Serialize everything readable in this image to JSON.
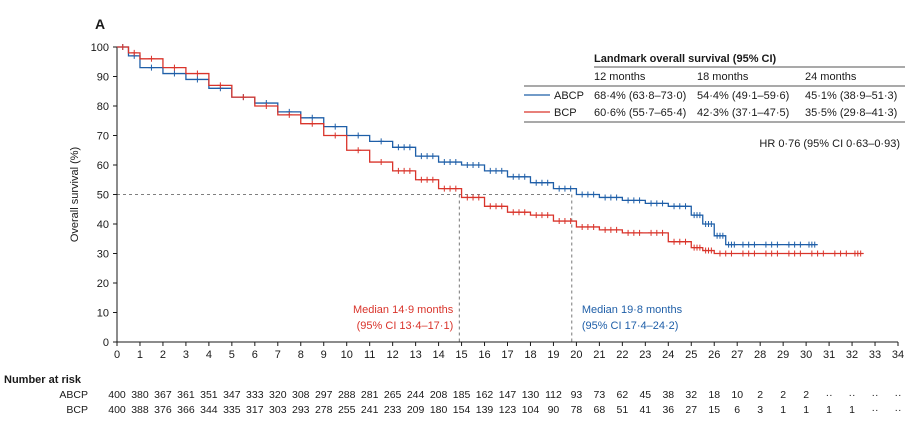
{
  "chart_data": {
    "type": "line",
    "panel_label": "A",
    "ylabel": "Overall survival (%)",
    "xlim": [
      0,
      34
    ],
    "ylim": [
      0,
      100
    ],
    "x_ticks": [
      "0",
      "1",
      "2",
      "3",
      "4",
      "5",
      "6",
      "7",
      "8",
      "9",
      "10",
      "11",
      "12",
      "13",
      "14",
      "15",
      "16",
      "17",
      "18",
      "19",
      "20",
      "21",
      "22",
      "23",
      "24",
      "25",
      "26",
      "27",
      "28",
      "29",
      "30",
      "31",
      "32",
      "33",
      "34"
    ],
    "y_ticks": [
      "0",
      "10",
      "20",
      "30",
      "40",
      "50",
      "60",
      "70",
      "80",
      "90",
      "100"
    ],
    "colors": {
      "ABCP": "#1f5fa8",
      "BCP": "#d9342b"
    },
    "series": [
      {
        "name": "ABCP",
        "color": "#1f5fa8",
        "x": [
          0,
          0.5,
          1,
          2,
          3,
          4,
          5,
          6,
          7,
          8,
          9,
          10,
          11,
          12,
          13,
          14,
          15,
          16,
          17,
          18,
          19,
          20,
          21,
          22,
          23,
          24,
          25,
          25.5,
          26,
          26.5,
          27,
          28,
          29,
          30,
          30.5
        ],
        "y": [
          100,
          97,
          93,
          91,
          89,
          86,
          83,
          81,
          78,
          76,
          73,
          70,
          68,
          66,
          63,
          61,
          60,
          58,
          56,
          54,
          52,
          50,
          49,
          48,
          47,
          46,
          43,
          40,
          36,
          33,
          33,
          33,
          33,
          33,
          33
        ]
      },
      {
        "name": "BCP",
        "color": "#d9342b",
        "x": [
          0,
          0.5,
          1,
          2,
          3,
          4,
          5,
          6,
          7,
          8,
          9,
          10,
          11,
          12,
          13,
          14,
          15,
          16,
          17,
          18,
          19,
          20,
          21,
          22,
          23,
          24,
          25,
          25.5,
          26,
          27,
          28,
          29,
          30,
          31,
          32,
          32.5
        ],
        "y": [
          100,
          98,
          96,
          93,
          91,
          87,
          83,
          80,
          77,
          74,
          70,
          65,
          61,
          58,
          55,
          52,
          49,
          46,
          44,
          43,
          41,
          39,
          38,
          37,
          37,
          34,
          32,
          31,
          30,
          30,
          30,
          30,
          30,
          30,
          30,
          30
        ]
      }
    ],
    "reference_line_y": 50,
    "medians": [
      {
        "series": "BCP",
        "x": 14.9,
        "text1": "Median 14·9 months",
        "text2": "(95% CI 13·4–17·1)",
        "color": "#d9342b"
      },
      {
        "series": "ABCP",
        "x": 19.8,
        "text1": "Median 19·8 months",
        "text2": "(95% CI 17·4–24·2)",
        "color": "#1f5fa8"
      }
    ],
    "landmark_table": {
      "title": "Landmark overall survival (95% CI)",
      "headers": [
        "12 months",
        "18 months",
        "24 months"
      ],
      "rows": [
        {
          "name": "ABCP",
          "color": "#1f5fa8",
          "values": [
            "68·4% (63·8–73·0)",
            "54·4% (49·1–59·6)",
            "45·1% (38·9–51·3)"
          ]
        },
        {
          "name": "BCP",
          "color": "#d9342b",
          "values": [
            "60·6% (55·7–65·4)",
            "42·3% (37·1–47·5)",
            "35·5% (29·8–41·3)"
          ]
        }
      ]
    },
    "hr_text": "HR 0·76 (95% CI 0·63–0·93)",
    "risk_table": {
      "title": "Number at risk",
      "rows": [
        {
          "name": "ABCP",
          "values": [
            "400",
            "380",
            "367",
            "361",
            "351",
            "347",
            "333",
            "320",
            "308",
            "297",
            "288",
            "281",
            "265",
            "244",
            "208",
            "185",
            "162",
            "147",
            "130",
            "112",
            "93",
            "73",
            "62",
            "45",
            "38",
            "32",
            "18",
            "10",
            "2",
            "2",
            "2",
            "··",
            "··",
            "··",
            "··"
          ]
        },
        {
          "name": "BCP",
          "values": [
            "400",
            "388",
            "376",
            "366",
            "344",
            "335",
            "317",
            "303",
            "293",
            "278",
            "255",
            "241",
            "233",
            "209",
            "180",
            "154",
            "139",
            "123",
            "104",
            "90",
            "78",
            "68",
            "51",
            "41",
            "36",
            "27",
            "15",
            "6",
            "3",
            "1",
            "1",
            "1",
            "1",
            "··",
            "··"
          ]
        }
      ]
    }
  }
}
